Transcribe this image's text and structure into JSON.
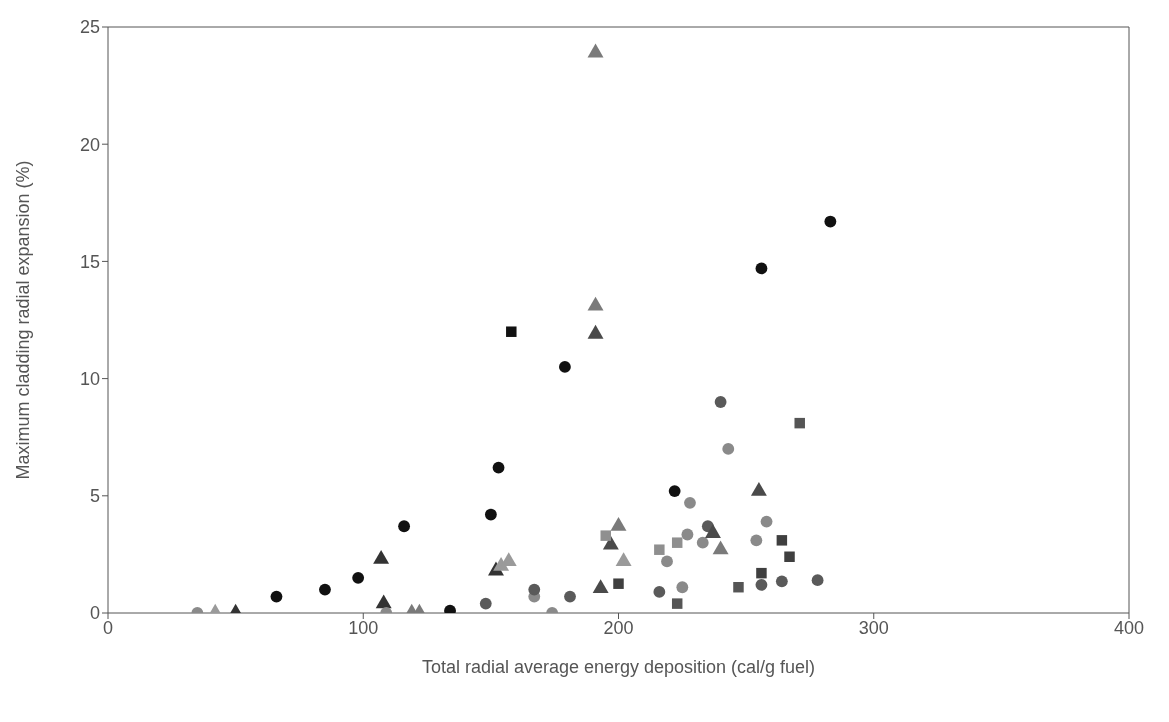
{
  "chart_data": {
    "type": "scatter",
    "xlabel": "Total radial average energy deposition (cal/g fuel)",
    "ylabel": "Maximum cladding radial expansion (%)",
    "xlim": [
      0,
      400
    ],
    "xticks": [
      0,
      100,
      200,
      300,
      400
    ],
    "ylim": [
      0,
      25
    ],
    "yticks": [
      0,
      5,
      10,
      15,
      20,
      25
    ],
    "series": [
      {
        "color": "#111111",
        "marker": "circle",
        "x": [
          66,
          85,
          98,
          116,
          134,
          150,
          153,
          179,
          222,
          256,
          283
        ],
        "values": [
          0.7,
          1.0,
          1.5,
          3.7,
          0.1,
          4.2,
          6.2,
          10.5,
          5.2,
          14.7,
          16.7
        ]
      },
      {
        "color": "#111111",
        "marker": "square",
        "x": [
          158
        ],
        "values": [
          12.0
        ]
      },
      {
        "color": "#333333",
        "marker": "triangle",
        "x": [
          50,
          107,
          108,
          152
        ],
        "values": [
          0,
          2.3,
          0.4,
          1.8
        ]
      },
      {
        "color": "#9a9a9a",
        "marker": "triangle",
        "x": [
          42,
          154,
          157,
          202
        ],
        "values": [
          0,
          2.0,
          2.2,
          2.2
        ]
      },
      {
        "color": "#8a8a8a",
        "marker": "circle",
        "x": [
          35,
          109,
          167,
          174,
          219,
          225,
          227,
          228,
          233,
          243,
          254,
          258
        ],
        "values": [
          0,
          0,
          0.7,
          0,
          2.2,
          1.1,
          3.35,
          4.7,
          3.0,
          7.0,
          3.1,
          3.9
        ]
      },
      {
        "color": "#5a5a5a",
        "marker": "circle",
        "x": [
          148,
          167,
          181,
          216,
          235,
          240,
          256,
          264,
          278
        ],
        "values": [
          0.4,
          1.0,
          0.7,
          0.9,
          3.7,
          9.0,
          1.2,
          1.35,
          1.4
        ]
      },
      {
        "color": "#7a7a7a",
        "marker": "triangle",
        "x": [
          119,
          122,
          191,
          191,
          200,
          240
        ],
        "values": [
          0,
          0,
          23.9,
          13.1,
          3.7,
          2.7
        ]
      },
      {
        "color": "#4a4a4a",
        "marker": "triangle",
        "x": [
          191,
          193,
          197,
          237,
          255
        ],
        "values": [
          11.9,
          1.05,
          2.9,
          3.4,
          5.2
        ]
      },
      {
        "color": "#8f8f8f",
        "marker": "square",
        "x": [
          195,
          216,
          223
        ],
        "values": [
          3.3,
          2.7,
          3.0
        ]
      },
      {
        "color": "#555555",
        "marker": "square",
        "x": [
          223,
          247,
          271
        ],
        "values": [
          0.4,
          1.1,
          8.1
        ]
      },
      {
        "color": "#3f3f3f",
        "marker": "square",
        "x": [
          200,
          256,
          264,
          267
        ],
        "values": [
          1.25,
          1.7,
          3.1,
          2.4
        ]
      }
    ]
  }
}
